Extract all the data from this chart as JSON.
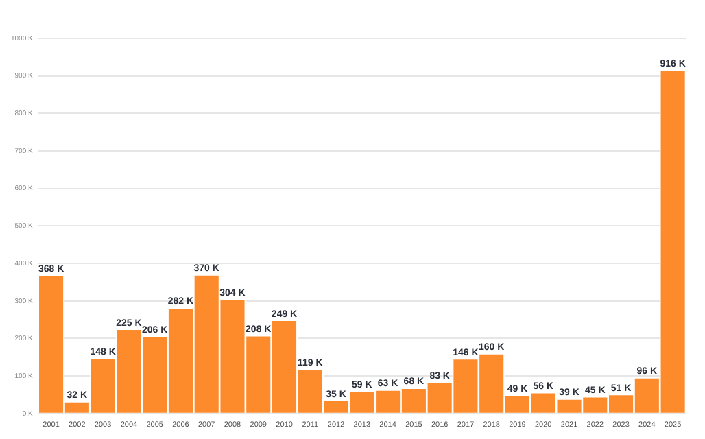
{
  "chart_data": {
    "type": "bar",
    "categories": [
      "2001",
      "2002",
      "2003",
      "2004",
      "2005",
      "2006",
      "2007",
      "2008",
      "2009",
      "2010",
      "2011",
      "2012",
      "2013",
      "2014",
      "2015",
      "2016",
      "2017",
      "2018",
      "2019",
      "2020",
      "2021",
      "2022",
      "2023",
      "2024",
      "2025"
    ],
    "values": [
      368,
      32,
      148,
      225,
      206,
      282,
      370,
      304,
      208,
      249,
      119,
      35,
      59,
      63,
      68,
      83,
      146,
      160,
      49,
      56,
      39,
      45,
      51,
      96,
      916
    ],
    "value_labels": [
      "368 K",
      "32 K",
      "148 K",
      "225 K",
      "206 K",
      "282 K",
      "370 K",
      "304 K",
      "208 K",
      "249 K",
      "119 K",
      "35 K",
      "59 K",
      "63 K",
      "68 K",
      "83 K",
      "146 K",
      "160 K",
      "49 K",
      "56 K",
      "39 K",
      "45 K",
      "51 K",
      "96 K",
      "916 K"
    ],
    "color": "#fd8a2b",
    "ylim": [
      0,
      1000
    ],
    "yticks": [
      {
        "value": 0,
        "label": "0 K"
      },
      {
        "value": 100,
        "label": "100 K"
      },
      {
        "value": 200,
        "label": "200 K"
      },
      {
        "value": 300,
        "label": "300 K"
      },
      {
        "value": 400,
        "label": "400 K"
      },
      {
        "value": 500,
        "label": "500 K"
      },
      {
        "value": 600,
        "label": "600 K"
      },
      {
        "value": 700,
        "label": "700 K"
      },
      {
        "value": 800,
        "label": "800 K"
      },
      {
        "value": 900,
        "label": "900 K"
      },
      {
        "value": 1000,
        "label": "1000 K"
      }
    ],
    "grid": "y",
    "legend": false
  }
}
